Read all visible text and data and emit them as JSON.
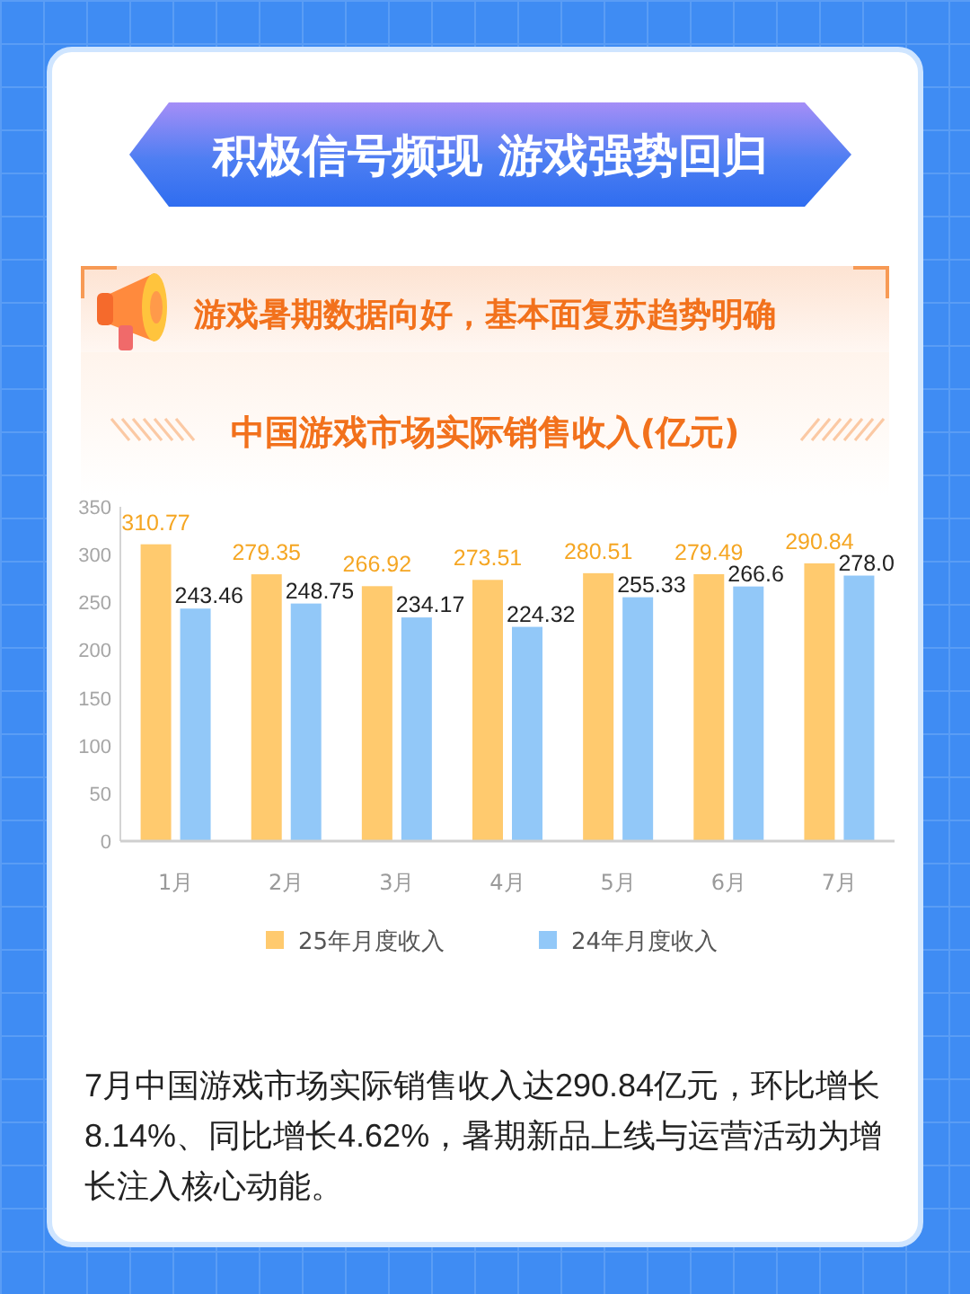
{
  "chart_data": {
    "type": "bar",
    "title": "中国游戏市场实际销售收入(亿元)",
    "annotations": [
      "积极信号频现 游戏强势回归",
      "游戏暑期数据向好，基本面复苏趋势明确",
      "7月中国游戏市场实际销售收入达290.84亿元，环比增长8.14%、同比增长4.62%，暑期新品上线与运营活动为增长注入核心动能。"
    ],
    "categories": [
      "1月",
      "2月",
      "3月",
      "4月",
      "5月",
      "6月",
      "7月"
    ],
    "series": [
      {
        "name": "25年月度收入",
        "color": "#ffca6e",
        "values": [
          310.77,
          279.35,
          266.92,
          273.51,
          280.51,
          279.49,
          290.84
        ],
        "value_labels": [
          "310.77",
          "279.35",
          "266.92",
          "273.51",
          "280.51",
          "279.49",
          "290.84"
        ]
      },
      {
        "name": "24年月度收入",
        "color": "#92c8f8",
        "values": [
          243.46,
          248.75,
          234.17,
          224.32,
          255.33,
          266.6,
          278.0
        ],
        "value_labels": [
          "243.46",
          "248.75",
          "234.17",
          "224.32",
          "255.33",
          "266.6",
          "278.0"
        ]
      }
    ],
    "ylim": [
      0,
      350
    ],
    "yticks": [
      0,
      50,
      100,
      150,
      200,
      250,
      300,
      350
    ],
    "legend": "bottom"
  }
}
